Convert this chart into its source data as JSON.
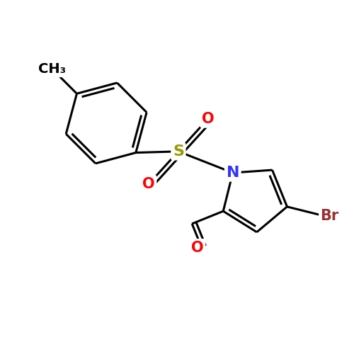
{
  "background_color": "#ffffff",
  "bond_color": "#000000",
  "bond_width": 2.2,
  "atom_colors": {
    "N": "#3333ff",
    "O": "#ff0000",
    "S": "#999900",
    "Br": "#993333",
    "C": "#000000"
  },
  "figsize": [
    5.0,
    5.0
  ],
  "dpi": 100,
  "xlim": [
    -2.4,
    2.8
  ],
  "ylim": [
    -1.8,
    2.8
  ]
}
